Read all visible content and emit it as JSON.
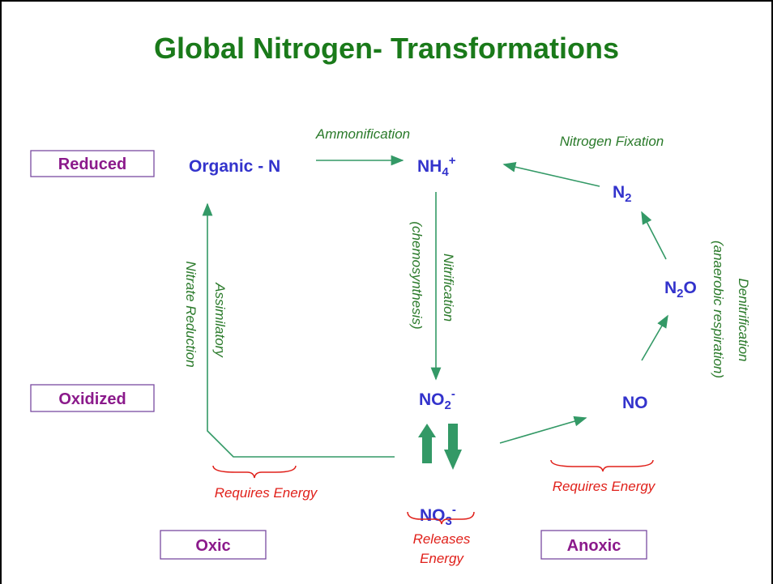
{
  "title": "Global Nitrogen- Transformations",
  "states": {
    "reduced": "Reduced",
    "oxidized": "Oxidized",
    "oxic": "Oxic",
    "anoxic": "Anoxic"
  },
  "species": {
    "organic_n": {
      "base": "Organic - N"
    },
    "nh4": {
      "base": "NH",
      "sub": "4",
      "sup": "+"
    },
    "n2": {
      "base": "N",
      "sub": "2"
    },
    "n2o": {
      "base": "N",
      "sub": "2",
      "rest": "O"
    },
    "no": {
      "base": "NO"
    },
    "no2": {
      "base": "NO",
      "sub": "2",
      "sup": "-"
    },
    "no3": {
      "base": "NO",
      "sub": "3",
      "sup": "-"
    }
  },
  "processes": {
    "ammonification": "Ammonification",
    "nitrogen_fixation": "Nitrogen Fixation",
    "nitrification": "Nitrification",
    "chemosynthesis": "(chemosynthesis)",
    "denitrification": "Denitrification",
    "anaerobic": "(anaerobic respiration)",
    "assimilatory": "Assimilatory",
    "nitrate_reduction": "Nitrate Reduction"
  },
  "energy": {
    "requires_left": "Requires Energy",
    "requires_right": "Requires Energy",
    "releases_1": "Releases",
    "releases_2": "Energy"
  }
}
